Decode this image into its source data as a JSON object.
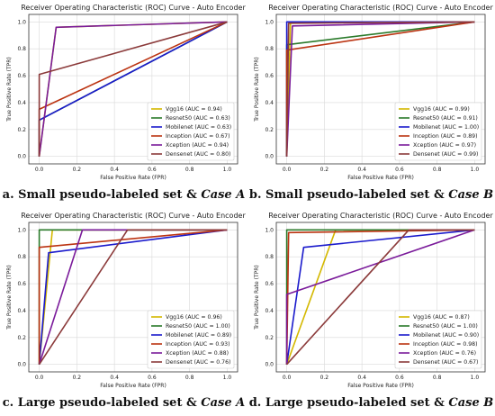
{
  "chart_data": [
    {
      "type": "line",
      "title": "Receiver Operating Characteristic (ROC) Curve - Auto Encoder",
      "xlabel": "False Positive Rate (FPR)",
      "ylabel": "True Positive Rate (TPR)",
      "xlim": [
        0,
        1
      ],
      "ylim": [
        0,
        1
      ],
      "xticks": [
        "0.0",
        "0.2",
        "0.4",
        "0.6",
        "0.8",
        "1.0"
      ],
      "yticks": [
        "0.0",
        "0.2",
        "0.4",
        "0.6",
        "0.8",
        "1.0"
      ],
      "grid": true,
      "legend_placement": "bottom-right",
      "caption_text": "a. Small  pseudo-labeled set & ",
      "caption_case": "Case A",
      "series": [
        {
          "name": "Vgg16 (AUC = 0.94)",
          "color": "#d4b800",
          "x": [
            0,
            0.09,
            1
          ],
          "y": [
            0,
            0.96,
            1
          ]
        },
        {
          "name": "Resnet50 (AUC = 0.63)",
          "color": "#2a7a2a",
          "x": [
            0,
            0,
            1
          ],
          "y": [
            0,
            0.27,
            1
          ]
        },
        {
          "name": "Mobilenet (AUC = 0.63)",
          "color": "#1a1acc",
          "x": [
            0,
            0,
            1
          ],
          "y": [
            0,
            0.27,
            1
          ]
        },
        {
          "name": "Inception (AUC = 0.67)",
          "color": "#bb3311",
          "x": [
            0,
            0,
            1
          ],
          "y": [
            0,
            0.35,
            1
          ]
        },
        {
          "name": "Xception (AUC = 0.94)",
          "color": "#7a1a9a",
          "x": [
            0,
            0.09,
            1
          ],
          "y": [
            0,
            0.96,
            1
          ]
        },
        {
          "name": "Densenet (AUC = 0.80)",
          "color": "#8b3a3a",
          "x": [
            0,
            0,
            1
          ],
          "y": [
            0,
            0.61,
            1
          ]
        }
      ]
    },
    {
      "type": "line",
      "title": "Receiver Operating Characteristic (ROC) Curve - Auto Encoder",
      "xlabel": "False Positive Rate (FPR)",
      "ylabel": "True Positive Rate (TPR)",
      "xlim": [
        0,
        1
      ],
      "ylim": [
        0,
        1
      ],
      "xticks": [
        "0.0",
        "0.2",
        "0.4",
        "0.6",
        "0.8",
        "1.0"
      ],
      "yticks": [
        "0.0",
        "0.2",
        "0.4",
        "0.6",
        "0.8",
        "1.0"
      ],
      "grid": true,
      "legend_placement": "bottom-right",
      "caption_text": "b. Small  pseudo-labeled set & ",
      "caption_case": "Case B",
      "series": [
        {
          "name": "Vgg16 (AUC = 0.99)",
          "color": "#d4b800",
          "x": [
            0,
            0.02,
            1
          ],
          "y": [
            0,
            1.0,
            1
          ]
        },
        {
          "name": "Resnet50 (AUC = 0.91)",
          "color": "#2a7a2a",
          "x": [
            0,
            0,
            1
          ],
          "y": [
            0,
            0.83,
            1
          ]
        },
        {
          "name": "Mobilenet (AUC = 1.00)",
          "color": "#1a1acc",
          "x": [
            0,
            0,
            1
          ],
          "y": [
            0,
            1.0,
            1
          ]
        },
        {
          "name": "Inception (AUC = 0.89)",
          "color": "#bb3311",
          "x": [
            0,
            0,
            1
          ],
          "y": [
            0,
            0.79,
            1
          ]
        },
        {
          "name": "Xception (AUC = 0.97)",
          "color": "#7a1a9a",
          "x": [
            0,
            0.03,
            1
          ],
          "y": [
            0,
            0.97,
            1
          ]
        },
        {
          "name": "Densenet (AUC = 0.99)",
          "color": "#8b3a3a",
          "x": [
            0,
            0.01,
            1
          ],
          "y": [
            0,
            0.99,
            1
          ]
        }
      ]
    },
    {
      "type": "line",
      "title": "Receiver Operating Characteristic (ROC) Curve - Auto Encoder",
      "xlabel": "False Positive Rate (FPR)",
      "ylabel": "True Positive Rate (TPR)",
      "xlim": [
        0,
        1
      ],
      "ylim": [
        0,
        1
      ],
      "xticks": [
        "0.0",
        "0.2",
        "0.4",
        "0.6",
        "0.8",
        "1.0"
      ],
      "yticks": [
        "0.0",
        "0.2",
        "0.4",
        "0.6",
        "0.8",
        "1.0"
      ],
      "grid": true,
      "legend_placement": "bottom-right",
      "caption_text": "c. Large pseudo-labeled set & ",
      "caption_case": "Case A",
      "series": [
        {
          "name": "Vgg16 (AUC = 0.96)",
          "color": "#d4b800",
          "x": [
            0,
            0.07,
            1
          ],
          "y": [
            0,
            1.0,
            1
          ]
        },
        {
          "name": "Resnet50 (AUC = 1.00)",
          "color": "#2a7a2a",
          "x": [
            0,
            0,
            1
          ],
          "y": [
            0,
            1.0,
            1
          ]
        },
        {
          "name": "Mobilenet (AUC = 0.89)",
          "color": "#1a1acc",
          "x": [
            0,
            0.05,
            1
          ],
          "y": [
            0,
            0.83,
            1
          ]
        },
        {
          "name": "Inception (AUC = 0.93)",
          "color": "#bb3311",
          "x": [
            0,
            0,
            1
          ],
          "y": [
            0,
            0.87,
            1
          ]
        },
        {
          "name": "Xception (AUC = 0.88)",
          "color": "#7a1a9a",
          "x": [
            0,
            0.23,
            1
          ],
          "y": [
            0,
            1.0,
            1
          ]
        },
        {
          "name": "Densenet (AUC = 0.76)",
          "color": "#8b3a3a",
          "x": [
            0,
            0.47,
            1
          ],
          "y": [
            0,
            1.0,
            1
          ]
        }
      ]
    },
    {
      "type": "line",
      "title": "Receiver Operating Characteristic (ROC) Curve - Auto Encoder",
      "xlabel": "False Positive Rate (FPR)",
      "ylabel": "True Positive Rate (TPR)",
      "xlim": [
        0,
        1
      ],
      "ylim": [
        0,
        1
      ],
      "xticks": [
        "0.0",
        "0.2",
        "0.4",
        "0.6",
        "0.8",
        "1.0"
      ],
      "yticks": [
        "0.0",
        "0.2",
        "0.4",
        "0.6",
        "0.8",
        "1.0"
      ],
      "grid": true,
      "legend_placement": "bottom-right",
      "caption_text": "d. Large pseudo-labeled set & ",
      "caption_case": "Case B",
      "series": [
        {
          "name": "Vgg16 (AUC = 0.87)",
          "color": "#d4b800",
          "x": [
            0,
            0.26,
            1
          ],
          "y": [
            0,
            1.0,
            1
          ]
        },
        {
          "name": "Resnet50 (AUC = 1.00)",
          "color": "#2a7a2a",
          "x": [
            0,
            0,
            1
          ],
          "y": [
            0,
            1.0,
            1
          ]
        },
        {
          "name": "Mobilenet (AUC = 0.90)",
          "color": "#1a1acc",
          "x": [
            0,
            0.09,
            1
          ],
          "y": [
            0,
            0.87,
            1
          ]
        },
        {
          "name": "Inception (AUC = 0.98)",
          "color": "#bb3311",
          "x": [
            0,
            0.01,
            1
          ],
          "y": [
            0,
            0.98,
            1
          ]
        },
        {
          "name": "Xception (AUC = 0.76)",
          "color": "#7a1a9a",
          "x": [
            0,
            0,
            1
          ],
          "y": [
            0,
            0.52,
            1
          ]
        },
        {
          "name": "Densenet (AUC = 0.67)",
          "color": "#8b3a3a",
          "x": [
            0,
            0.65,
            1
          ],
          "y": [
            0,
            1.0,
            1
          ]
        }
      ]
    }
  ]
}
